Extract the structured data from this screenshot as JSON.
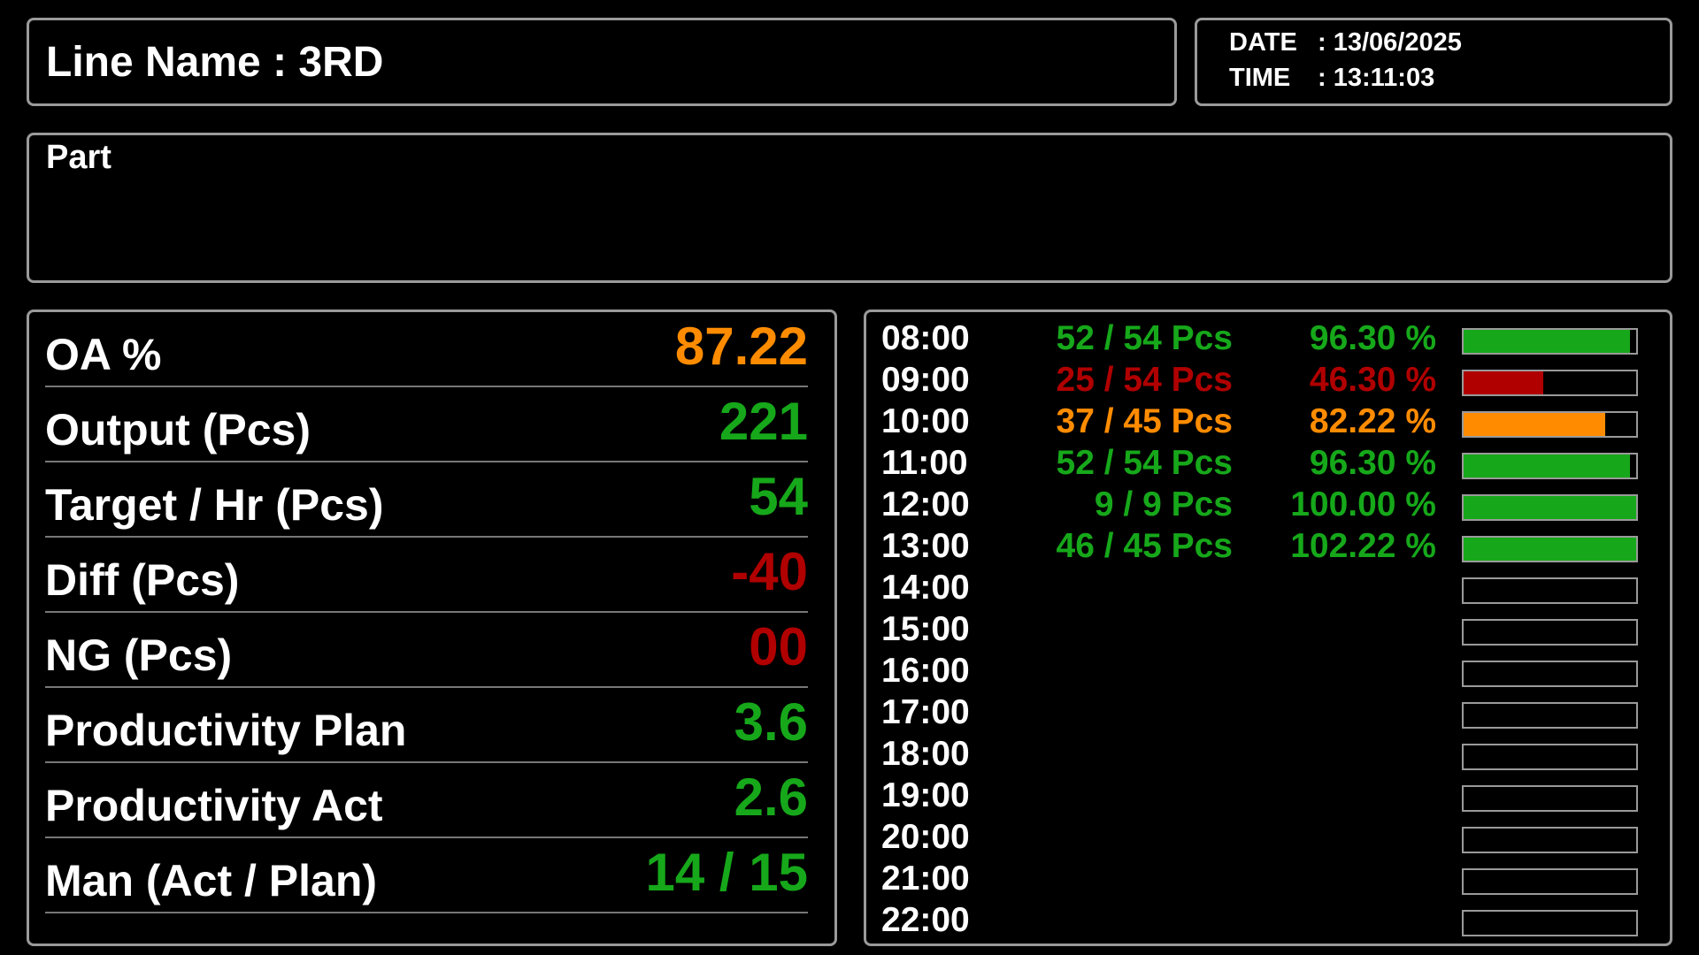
{
  "header": {
    "line_title": "Line Name : 3RD",
    "date_label": "DATE",
    "date_value": ": 13/06/2025",
    "time_label": "TIME",
    "time_value": ": 13:11:03"
  },
  "part": {
    "label": "Part",
    "value": ""
  },
  "colors": {
    "green": "#16a81a",
    "red": "#b00000",
    "orange": "#ff8c00",
    "white": "#ffffff",
    "border": "#9a9a9a"
  },
  "metrics": [
    {
      "label": "OA %",
      "value": "87.22",
      "status": "orange"
    },
    {
      "label": "Output (Pcs)",
      "value": "221",
      "status": "green"
    },
    {
      "label": "Target / Hr (Pcs)",
      "value": "54",
      "status": "green"
    },
    {
      "label": "Diff (Pcs)",
      "value": "-40",
      "status": "red"
    },
    {
      "label": "NG (Pcs)",
      "value": "00",
      "status": "red"
    },
    {
      "label": "Productivity Plan",
      "value": "3.6",
      "status": "green"
    },
    {
      "label": "Productivity Act",
      "value": "2.6",
      "status": "green"
    },
    {
      "label": "Man (Act / Plan)",
      "value": "14 / 15",
      "status": "green"
    }
  ],
  "hourly": [
    {
      "time": "08:00",
      "pcs": "52 / 54 Pcs",
      "percent": "96.30 %",
      "fill": 0.963,
      "status": "green"
    },
    {
      "time": "09:00",
      "pcs": "25 / 54 Pcs",
      "percent": "46.30 %",
      "fill": 0.463,
      "status": "red"
    },
    {
      "time": "10:00",
      "pcs": "37 / 45 Pcs",
      "percent": "82.22 %",
      "fill": 0.8222,
      "status": "orange"
    },
    {
      "time": "11:00",
      "pcs": "52 / 54 Pcs",
      "percent": "96.30 %",
      "fill": 0.963,
      "status": "green"
    },
    {
      "time": "12:00",
      "pcs": "9 / 9 Pcs",
      "percent": "100.00 %",
      "fill": 1.0,
      "status": "green"
    },
    {
      "time": "13:00",
      "pcs": "46 / 45 Pcs",
      "percent": "102.22 %",
      "fill": 1.0,
      "status": "green"
    },
    {
      "time": "14:00",
      "pcs": "",
      "percent": "",
      "fill": 0,
      "status": "none"
    },
    {
      "time": "15:00",
      "pcs": "",
      "percent": "",
      "fill": 0,
      "status": "none"
    },
    {
      "time": "16:00",
      "pcs": "",
      "percent": "",
      "fill": 0,
      "status": "none"
    },
    {
      "time": "17:00",
      "pcs": "",
      "percent": "",
      "fill": 0,
      "status": "none"
    },
    {
      "time": "18:00",
      "pcs": "",
      "percent": "",
      "fill": 0,
      "status": "none"
    },
    {
      "time": "19:00",
      "pcs": "",
      "percent": "",
      "fill": 0,
      "status": "none"
    },
    {
      "time": "20:00",
      "pcs": "",
      "percent": "",
      "fill": 0,
      "status": "none"
    },
    {
      "time": "21:00",
      "pcs": "",
      "percent": "",
      "fill": 0,
      "status": "none"
    },
    {
      "time": "22:00",
      "pcs": "",
      "percent": "",
      "fill": 0,
      "status": "none"
    }
  ]
}
